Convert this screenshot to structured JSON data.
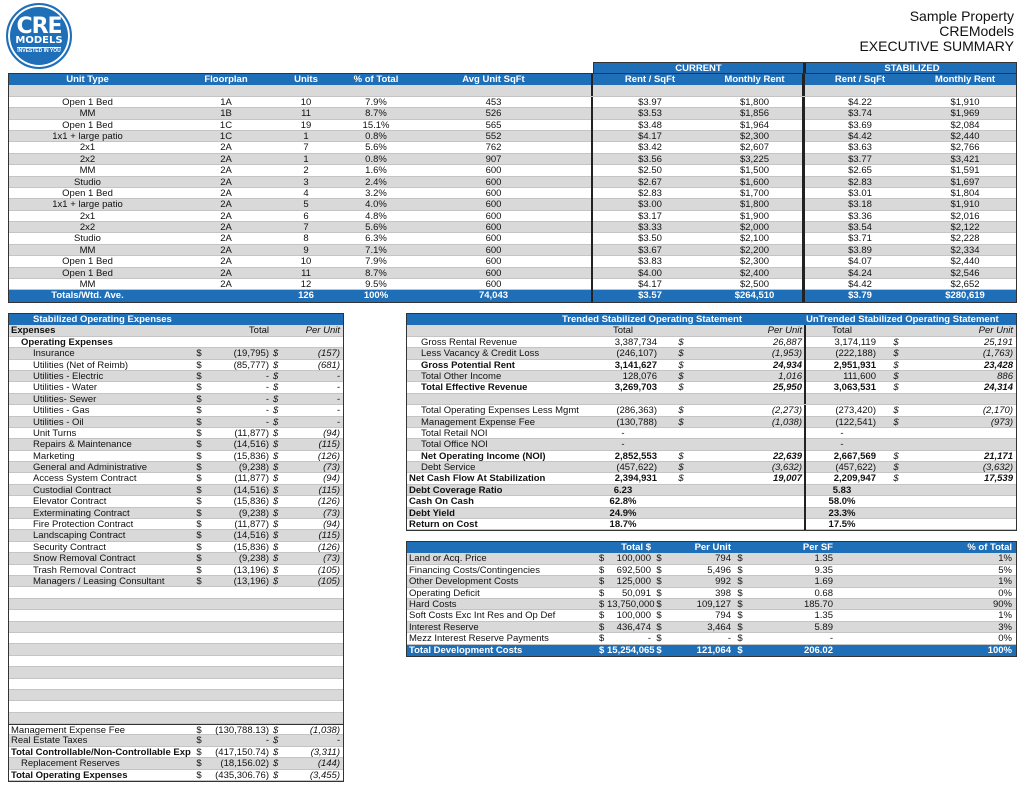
{
  "currency_symbol": "$",
  "logo": {
    "line1": "CRE",
    "line2": "MODELS",
    "tagline": "INVESTED IN YOU",
    "color": "#1f6fb8"
  },
  "header": {
    "property": "Sample Property",
    "company": "CREModels",
    "report": "EXECUTIVE SUMMARY"
  },
  "unit_mix": {
    "group_current": "CURRENT",
    "group_stabilized": "STABILIZED",
    "columns": [
      "Unit Type",
      "Floorplan",
      "Units",
      "% of Total",
      "Avg Unit SqFt",
      "Rent / SqFt",
      "Monthly Rent",
      "Rent / SqFt",
      "Monthly Rent"
    ],
    "rows": [
      [
        "Open 1 Bed",
        "1A",
        "10",
        "7.9%",
        "453",
        "$3.97",
        "$1,800",
        "$4.22",
        "$1,910"
      ],
      [
        "MM",
        "1B",
        "11",
        "8.7%",
        "526",
        "$3.53",
        "$1,856",
        "$3.74",
        "$1,969"
      ],
      [
        "Open 1 Bed",
        "1C",
        "19",
        "15.1%",
        "565",
        "$3.48",
        "$1,964",
        "$3.69",
        "$2,084"
      ],
      [
        "1x1 + large patio",
        "1C",
        "1",
        "0.8%",
        "552",
        "$4.17",
        "$2,300",
        "$4.42",
        "$2,440"
      ],
      [
        "2x1",
        "2A",
        "7",
        "5.6%",
        "762",
        "$3.42",
        "$2,607",
        "$3.63",
        "$2,766"
      ],
      [
        "2x2",
        "2A",
        "1",
        "0.8%",
        "907",
        "$3.56",
        "$3,225",
        "$3.77",
        "$3,421"
      ],
      [
        "MM",
        "2A",
        "2",
        "1.6%",
        "600",
        "$2.50",
        "$1,500",
        "$2.65",
        "$1,591"
      ],
      [
        "Studio",
        "2A",
        "3",
        "2.4%",
        "600",
        "$2.67",
        "$1,600",
        "$2.83",
        "$1,697"
      ],
      [
        "Open 1 Bed",
        "2A",
        "4",
        "3.2%",
        "600",
        "$2.83",
        "$1,700",
        "$3.01",
        "$1,804"
      ],
      [
        "1x1 + large patio",
        "2A",
        "5",
        "4.0%",
        "600",
        "$3.00",
        "$1,800",
        "$3.18",
        "$1,910"
      ],
      [
        "2x1",
        "2A",
        "6",
        "4.8%",
        "600",
        "$3.17",
        "$1,900",
        "$3.36",
        "$2,016"
      ],
      [
        "2x2",
        "2A",
        "7",
        "5.6%",
        "600",
        "$3.33",
        "$2,000",
        "$3.54",
        "$2,122"
      ],
      [
        "Studio",
        "2A",
        "8",
        "6.3%",
        "600",
        "$3.50",
        "$2,100",
        "$3.71",
        "$2,228"
      ],
      [
        "MM",
        "2A",
        "9",
        "7.1%",
        "600",
        "$3.67",
        "$2,200",
        "$3.89",
        "$2,334"
      ],
      [
        "Open 1 Bed",
        "2A",
        "10",
        "7.9%",
        "600",
        "$3.83",
        "$2,300",
        "$4.07",
        "$2,440"
      ],
      [
        "Open 1 Bed",
        "2A",
        "11",
        "8.7%",
        "600",
        "$4.00",
        "$2,400",
        "$4.24",
        "$2,546"
      ],
      [
        "MM",
        "2A",
        "12",
        "9.5%",
        "600",
        "$4.17",
        "$2,500",
        "$4.42",
        "$2,652"
      ]
    ],
    "totals": [
      "Totals/Wtd. Ave.",
      "",
      "126",
      "100%",
      "74,043",
      "$3.57",
      "$264,510",
      "$3.79",
      "$280,619"
    ]
  },
  "expenses": {
    "title": "Stabilized Operating Expenses",
    "columns": [
      "Expenses",
      "Total",
      "Per Unit"
    ],
    "section": "Operating Expenses",
    "rows": [
      [
        "Insurance",
        "(19,795)",
        "(157)"
      ],
      [
        "Utilities (Net of Reimb)",
        "(85,777)",
        "(681)"
      ],
      [
        "Utilities - Electric",
        "-",
        "-"
      ],
      [
        "Utilities - Water",
        "-",
        "-"
      ],
      [
        "Utilities- Sewer",
        "-",
        "-"
      ],
      [
        "Utilities - Gas",
        "-",
        "-"
      ],
      [
        "Utilities - Oil",
        "-",
        "-"
      ],
      [
        "Unit Turns",
        "(11,877)",
        "(94)"
      ],
      [
        "Repairs & Maintenance",
        "(14,516)",
        "(115)"
      ],
      [
        "Marketing",
        "(15,836)",
        "(126)"
      ],
      [
        "General and Administrative",
        "(9,238)",
        "(73)"
      ],
      [
        "Access System Contract",
        "(11,877)",
        "(94)"
      ],
      [
        "Custodial Contract",
        "(14,516)",
        "(115)"
      ],
      [
        "Elevator Contract",
        "(15,836)",
        "(126)"
      ],
      [
        "Exterminating Contract",
        "(9,238)",
        "(73)"
      ],
      [
        "Fire Protection Contract",
        "(11,877)",
        "(94)"
      ],
      [
        "Landscaping Contract",
        "(14,516)",
        "(115)"
      ],
      [
        "Security Contract",
        "(15,836)",
        "(126)"
      ],
      [
        "Snow Removal Contract",
        "(9,238)",
        "(73)"
      ],
      [
        "Trash Removal Contract",
        "(13,196)",
        "(105)"
      ],
      [
        "Managers / Leasing Consultant",
        "(13,196)",
        "(105)"
      ]
    ],
    "footer": [
      [
        "Management Expense Fee",
        "(130,788.13)",
        "(1,038)"
      ],
      [
        "Real Estate Taxes",
        "-",
        "-"
      ],
      [
        "Total Controllable/Non-Controllable Exp",
        "(417,150.74)",
        "(3,311)"
      ],
      [
        "Replacement Reserves",
        "(18,156.02)",
        "(144)"
      ],
      [
        "Total Operating Expenses",
        "(435,306.76)",
        "(3,455)"
      ]
    ]
  },
  "operating_statement": {
    "trended_title": "Trended Stabilized Operating Statement",
    "untrended_title": "UnTrended Stabilized Operating Statement",
    "col_total": "Total",
    "col_per_unit": "Per Unit",
    "rows": [
      [
        "Gross Rental Revenue",
        "3,387,734",
        "26,887",
        "3,174,119",
        "25,191"
      ],
      [
        "Less Vacancy & Credit Loss",
        "(246,107)",
        "(1,953)",
        "(222,188)",
        "(1,763)"
      ],
      [
        "Gross Potential Rent",
        "3,141,627",
        "24,934",
        "2,951,931",
        "23,428"
      ],
      [
        "Total Other Income",
        "128,076",
        "1,016",
        "111,600",
        "886"
      ],
      [
        "Total Effective Revenue",
        "3,269,703",
        "25,950",
        "3,063,531",
        "24,314"
      ],
      [
        "",
        "",
        "",
        "",
        ""
      ],
      [
        "Total Operating Expenses Less Mgmt",
        "(286,363)",
        "(2,273)",
        "(273,420)",
        "(2,170)"
      ],
      [
        "Management Expense Fee",
        "(130,788)",
        "(1,038)",
        "(122,541)",
        "(973)"
      ],
      [
        "Total Retail NOI",
        "-",
        "",
        "-",
        ""
      ],
      [
        "Total Office NOI",
        "-",
        "",
        "-",
        ""
      ],
      [
        "Net Operating Income (NOI)",
        "2,852,553",
        "22,639",
        "2,667,569",
        "21,171"
      ],
      [
        "Debt Service",
        "(457,622)",
        "(3,632)",
        "(457,622)",
        "(3,632)"
      ],
      [
        "Net Cash Flow At Stabilization",
        "2,394,931",
        "19,007",
        "2,209,947",
        "17,539"
      ],
      [
        "Debt Coverage Ratio",
        "6.23",
        "",
        "5.83",
        ""
      ],
      [
        "Cash On Cash",
        "62.8%",
        "",
        "58.0%",
        ""
      ],
      [
        "Debt Yield",
        "24.9%",
        "",
        "23.3%",
        ""
      ],
      [
        "Return on Cost",
        "18.7%",
        "",
        "17.5%",
        ""
      ]
    ]
  },
  "development_costs": {
    "columns": [
      "Total $",
      "Per Unit",
      "Per SF",
      "% of Total"
    ],
    "rows": [
      [
        "Land or Acq. Price",
        "100,000",
        "794",
        "1.35",
        "1%"
      ],
      [
        "Financing Costs/Contingencies",
        "692,500",
        "5,496",
        "9.35",
        "5%"
      ],
      [
        "Other Development Costs",
        "125,000",
        "992",
        "1.69",
        "1%"
      ],
      [
        "Operating Deficit",
        "50,091",
        "398",
        "0.68",
        "0%"
      ],
      [
        "Hard Costs",
        "13,750,000",
        "109,127",
        "185.70",
        "90%"
      ],
      [
        "Soft Costs Exc Int Res and Op Def",
        "100,000",
        "794",
        "1.35",
        "1%"
      ],
      [
        "Interest Reserve",
        "436,474",
        "3,464",
        "5.89",
        "3%"
      ],
      [
        "Mezz Interest Reserve Payments",
        "-",
        "-",
        "-",
        "0%"
      ]
    ],
    "total": [
      "Total Development Costs",
      "15,254,065",
      "121,064",
      "206.02",
      "100%"
    ]
  }
}
